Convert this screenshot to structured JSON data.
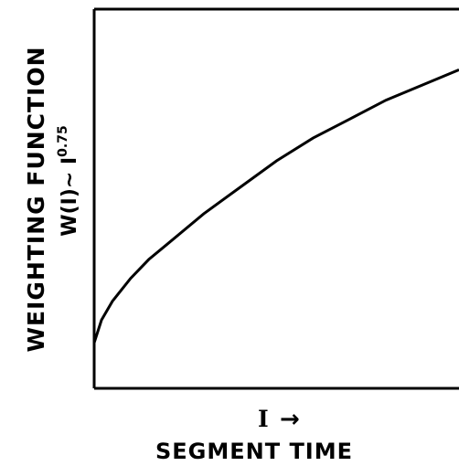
{
  "chart_data": {
    "type": "line",
    "title": "",
    "ylabel": "WEIGHTING FUNCTION",
    "ylabel_formula": {
      "base": "W(I)~ I",
      "exponent": "0.75"
    },
    "xlabel_variable": "I",
    "xlabel_arrow": "→",
    "xlabel": "SEGMENT TIME",
    "x_ticks": [],
    "y_ticks": [],
    "grid": false,
    "xlim": [
      0,
      1
    ],
    "ylim": [
      0,
      1
    ],
    "series": [
      {
        "x": [
          0.0,
          0.02,
          0.05,
          0.1,
          0.15,
          0.2,
          0.3,
          0.4,
          0.5,
          0.6,
          0.7,
          0.8,
          0.9,
          1.0
        ],
        "values": [
          0.12,
          0.18,
          0.23,
          0.29,
          0.34,
          0.38,
          0.46,
          0.53,
          0.6,
          0.66,
          0.71,
          0.76,
          0.8,
          0.84
        ]
      }
    ]
  }
}
